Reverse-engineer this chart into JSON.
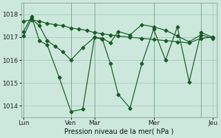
{
  "background_color": "#cce8dc",
  "grid_color": "#aacfbe",
  "line_color": "#1a5c28",
  "xlabel": "Pression niveau de la mer( hPa )",
  "ylim": [
    1013.5,
    1018.5
  ],
  "yticks": [
    1014,
    1015,
    1016,
    1017,
    1018
  ],
  "day_labels": [
    "Lun",
    "",
    "Ven",
    "Mar",
    "",
    "Mer",
    "",
    "Jeu"
  ],
  "day_positions": [
    0,
    6,
    12,
    18,
    27,
    33,
    39,
    48
  ],
  "xlim": [
    -0.5,
    49
  ],
  "line1_x": [
    0,
    2,
    4,
    6,
    8,
    10,
    12,
    14,
    16,
    18,
    20,
    22,
    24,
    27,
    30,
    33,
    36,
    39,
    42,
    45,
    48
  ],
  "line1_y": [
    1017.7,
    1017.75,
    1017.7,
    1017.6,
    1017.55,
    1017.5,
    1017.4,
    1017.35,
    1017.3,
    1017.2,
    1017.15,
    1017.1,
    1017.05,
    1017.0,
    1016.95,
    1016.9,
    1016.85,
    1016.8,
    1016.75,
    1016.95,
    1017.0
  ],
  "line2_x": [
    0,
    2,
    4,
    6,
    9,
    12,
    15,
    18,
    20,
    22,
    24,
    27,
    30,
    33,
    36,
    39,
    42,
    45,
    48
  ],
  "line2_y": [
    1017.25,
    1017.9,
    1016.85,
    1016.65,
    1015.25,
    1013.75,
    1013.85,
    1017.0,
    1016.9,
    1015.85,
    1014.5,
    1013.9,
    1015.85,
    1017.35,
    1016.0,
    1017.45,
    1015.05,
    1017.2,
    1017.0
  ],
  "line3_x": [
    0,
    2,
    4,
    6,
    8,
    10,
    12,
    15,
    18,
    20,
    22,
    24,
    27,
    30,
    33,
    36,
    39,
    42,
    45,
    48
  ],
  "line3_y": [
    1017.05,
    1017.8,
    1017.5,
    1016.85,
    1016.6,
    1016.35,
    1016.0,
    1016.55,
    1017.0,
    1016.95,
    1016.75,
    1017.25,
    1017.1,
    1017.55,
    1017.45,
    1017.3,
    1017.05,
    1016.8,
    1017.1,
    1016.95
  ]
}
